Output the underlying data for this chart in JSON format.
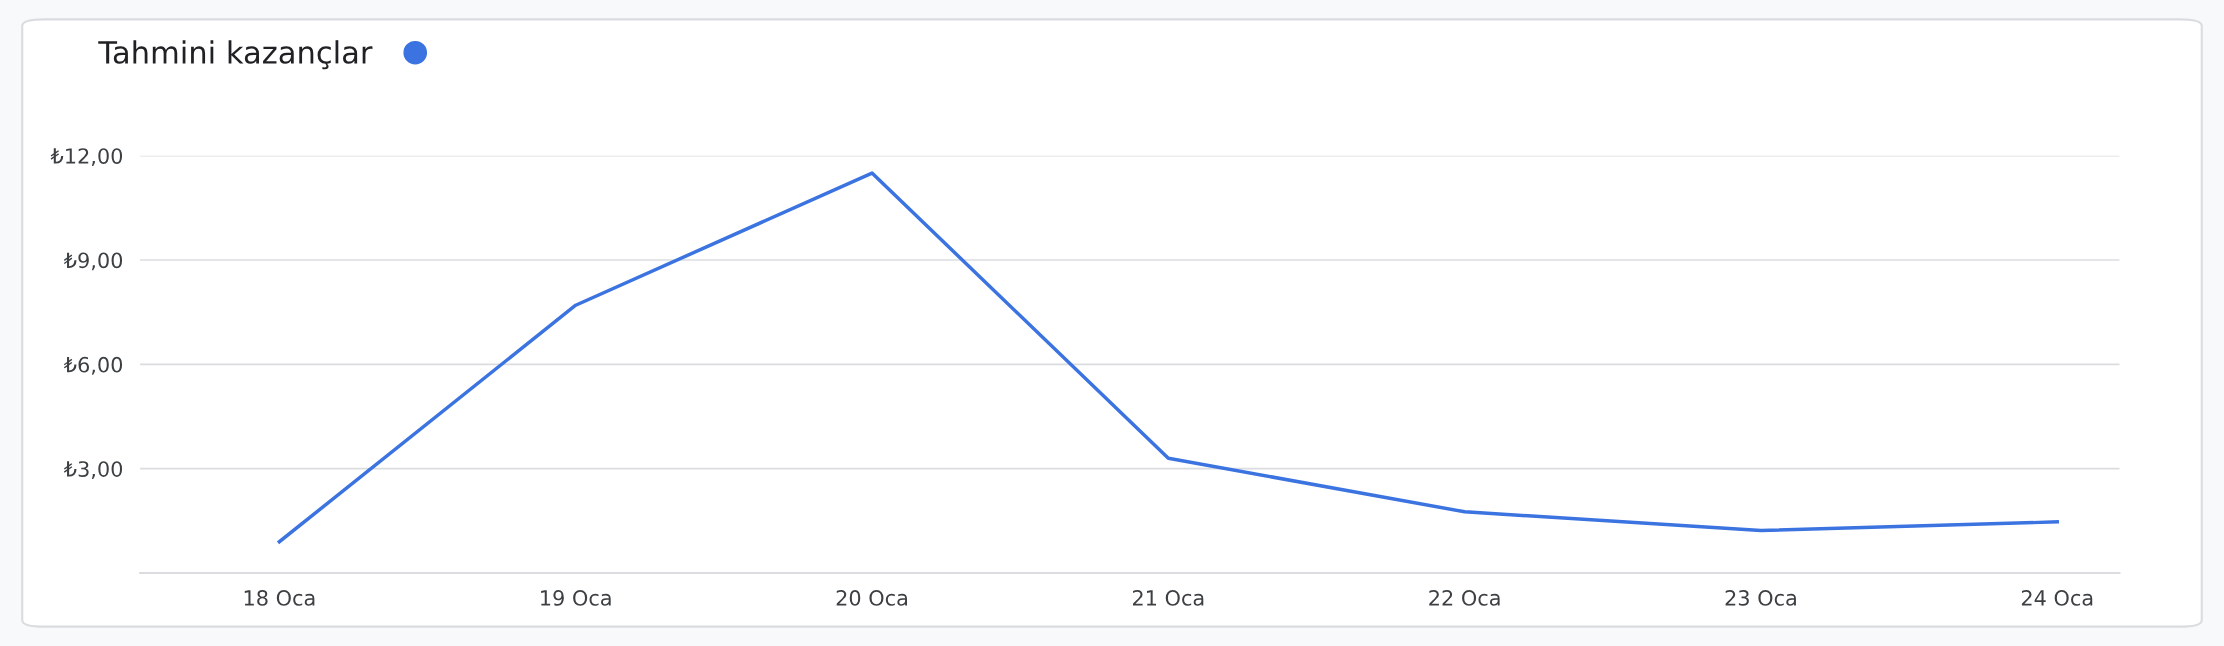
{
  "chart_data": {
    "type": "line",
    "categories": [
      "18 Oca",
      "19 Oca",
      "20 Oca",
      "21 Oca",
      "22 Oca",
      "23 Oca",
      "24 Oca"
    ],
    "series": [
      {
        "name": "Tahmini kazançlar",
        "color": "#3b73e0",
        "values": [
          0.9,
          7.7,
          11.5,
          3.3,
          1.76,
          1.22,
          1.47
        ]
      }
    ],
    "ylim": [
      0,
      12
    ],
    "yticks": [
      {
        "value": 3,
        "label": "₺3,00"
      },
      {
        "value": 6,
        "label": "₺6,00"
      },
      {
        "value": 9,
        "label": "₺9,00"
      },
      {
        "value": 12,
        "label": "₺12,00"
      }
    ],
    "grid": "y",
    "legend": "top left",
    "marker": "none",
    "line_style": "solid"
  }
}
